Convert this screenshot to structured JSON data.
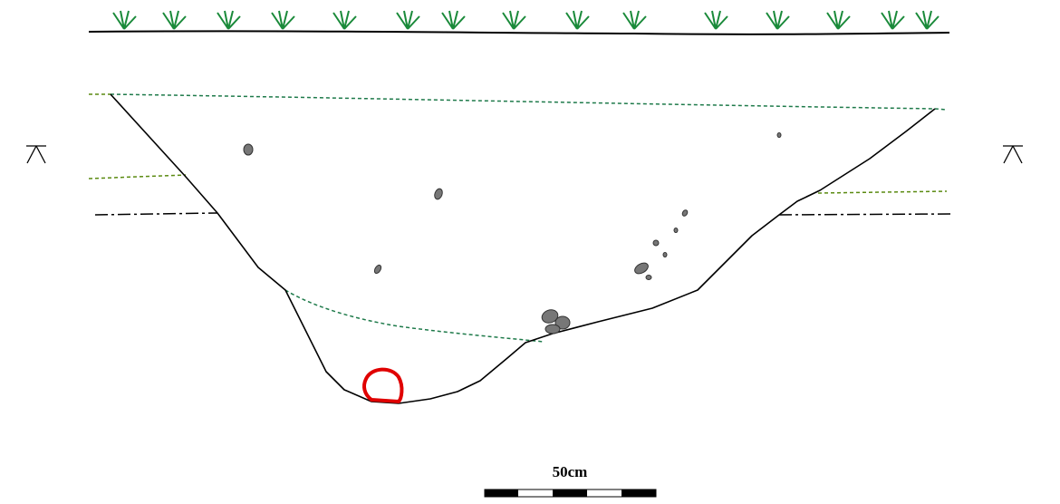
{
  "scale_bar": {
    "label": "50cm"
  }
}
